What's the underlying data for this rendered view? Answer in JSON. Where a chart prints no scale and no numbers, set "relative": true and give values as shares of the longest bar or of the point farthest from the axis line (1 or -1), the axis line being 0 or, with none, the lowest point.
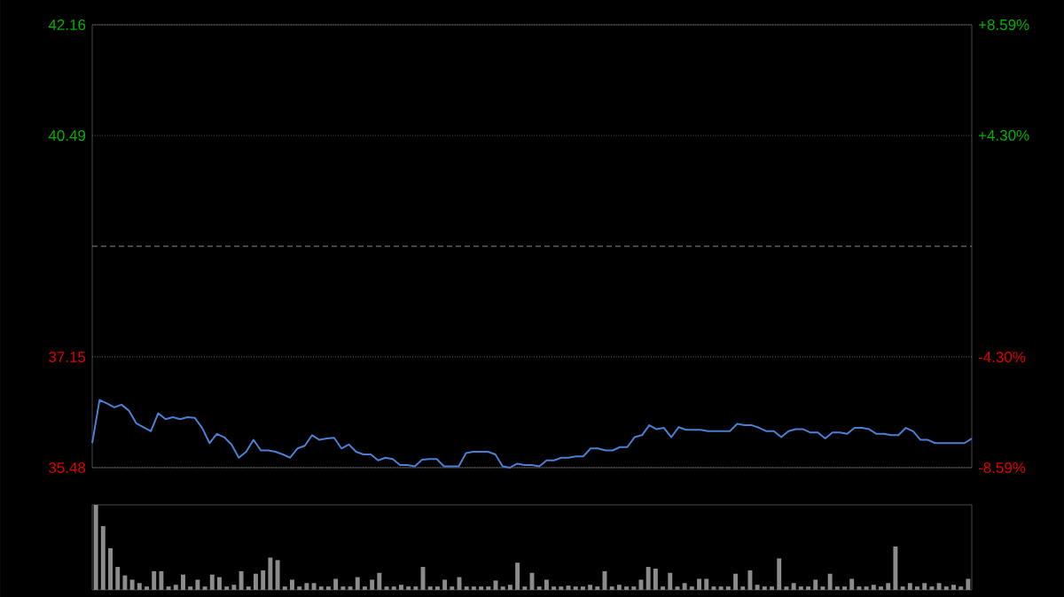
{
  "chart_data": [
    {
      "type": "line",
      "color": "#4a7fd4",
      "grid": "y",
      "tick_labels": "y",
      "categories": [
        null,
        null,
        null,
        null,
        null,
        null,
        null,
        null,
        null,
        null,
        null,
        null,
        null,
        null,
        null,
        null,
        null,
        null,
        null,
        null,
        null,
        null,
        null,
        null,
        null,
        null,
        null,
        null,
        null,
        null,
        null,
        null,
        null,
        null,
        null,
        null,
        null,
        null,
        null,
        null,
        null,
        null,
        null,
        null,
        null,
        null,
        null,
        null,
        null,
        null,
        null,
        null,
        null,
        null,
        null,
        null,
        null,
        null,
        null,
        null,
        null,
        null,
        null,
        null,
        null,
        null,
        null,
        null,
        null,
        null,
        null,
        null,
        null,
        null,
        null,
        null,
        null,
        null,
        null,
        null,
        null,
        null,
        null,
        null,
        null,
        null,
        null,
        null,
        null,
        null,
        null,
        null,
        null,
        null,
        null,
        null,
        null,
        null,
        null,
        null,
        null,
        null,
        null,
        null,
        null,
        null,
        null,
        null,
        null,
        null,
        null,
        null,
        null,
        null,
        null,
        null,
        null,
        null,
        null,
        null,
        null
      ],
      "values": [
        35.85,
        36.5,
        36.45,
        36.39,
        36.43,
        36.34,
        36.15,
        36.09,
        36.03,
        36.3,
        36.21,
        36.24,
        36.21,
        36.24,
        36.23,
        36.08,
        35.85,
        35.99,
        35.94,
        35.83,
        35.63,
        35.72,
        35.9,
        35.74,
        35.74,
        35.72,
        35.68,
        35.63,
        35.77,
        35.81,
        35.97,
        35.9,
        35.92,
        35.93,
        35.77,
        35.83,
        35.72,
        35.68,
        35.68,
        35.59,
        35.63,
        35.61,
        35.52,
        35.52,
        35.5,
        35.6,
        35.61,
        35.61,
        35.5,
        35.5,
        35.5,
        35.7,
        35.72,
        35.72,
        35.72,
        35.68,
        35.5,
        35.48,
        35.54,
        35.52,
        35.52,
        35.5,
        35.59,
        35.59,
        35.63,
        35.63,
        35.65,
        35.65,
        35.77,
        35.77,
        35.74,
        35.74,
        35.79,
        35.79,
        35.94,
        35.97,
        36.12,
        36.06,
        36.08,
        35.94,
        36.09,
        36.05,
        36.05,
        36.05,
        36.03,
        36.03,
        36.03,
        36.03,
        36.14,
        36.12,
        36.12,
        36.08,
        36.03,
        36.03,
        35.94,
        36.03,
        36.06,
        36.06,
        36.01,
        36.01,
        35.92,
        36.01,
        36.01,
        35.99,
        36.08,
        36.08,
        36.06,
        35.99,
        35.99,
        35.97,
        35.97,
        36.08,
        36.03,
        35.9,
        35.9,
        35.85,
        35.85,
        35.85,
        35.85,
        35.85,
        35.92
      ],
      "ylim": [
        35.48,
        42.16
      ],
      "yticks": [
        {
          "value": 35.48,
          "label": "35.48"
        },
        {
          "value": 37.15,
          "label": "37.15"
        },
        {
          "value": 40.49,
          "label": "40.49"
        },
        {
          "value": 42.16,
          "label": "42.16"
        }
      ],
      "y2lim": [
        -8.59,
        8.59
      ],
      "y2ticks": [
        {
          "value": -8.59,
          "label": "-8.59%"
        },
        {
          "value": -4.3,
          "label": "-4.30%"
        },
        {
          "value": 4.3,
          "label": "+4.30%"
        },
        {
          "value": 8.59,
          "label": "+8.59%"
        }
      ],
      "ref_lines": [
        {
          "axis": "y",
          "value": 38.82,
          "line_style": "dashed",
          "color": "#888888"
        }
      ]
    },
    {
      "type": "bar",
      "color": "#8c8c8c",
      "relative": true,
      "tick_labels": false,
      "categories": [
        null,
        null,
        null,
        null,
        null,
        null,
        null,
        null,
        null,
        null,
        null,
        null,
        null,
        null,
        null,
        null,
        null,
        null,
        null,
        null,
        null,
        null,
        null,
        null,
        null,
        null,
        null,
        null,
        null,
        null,
        null,
        null,
        null,
        null,
        null,
        null,
        null,
        null,
        null,
        null,
        null,
        null,
        null,
        null,
        null,
        null,
        null,
        null,
        null,
        null,
        null,
        null,
        null,
        null,
        null,
        null,
        null,
        null,
        null,
        null,
        null,
        null,
        null,
        null,
        null,
        null,
        null,
        null,
        null,
        null,
        null,
        null,
        null,
        null,
        null,
        null,
        null,
        null,
        null,
        null,
        null,
        null,
        null,
        null,
        null,
        null,
        null,
        null,
        null,
        null,
        null,
        null,
        null,
        null,
        null,
        null,
        null,
        null,
        null,
        null,
        null,
        null,
        null,
        null,
        null,
        null,
        null,
        null,
        null,
        null,
        null,
        null,
        null,
        null,
        null,
        null,
        null,
        null,
        null,
        null,
        null
      ],
      "values": [
        1.0,
        0.75,
        0.49,
        0.27,
        0.17,
        0.12,
        0.08,
        0.04,
        0.22,
        0.22,
        0.04,
        0.06,
        0.18,
        0.04,
        0.12,
        0.04,
        0.18,
        0.15,
        0.04,
        0.06,
        0.22,
        0.04,
        0.19,
        0.23,
        0.38,
        0.35,
        0.04,
        0.12,
        0.04,
        0.08,
        0.08,
        0.04,
        0.04,
        0.13,
        0.04,
        0.04,
        0.15,
        0.04,
        0.12,
        0.2,
        0.04,
        0.04,
        0.06,
        0.04,
        0.04,
        0.27,
        0.04,
        0.04,
        0.12,
        0.04,
        0.15,
        0.04,
        0.04,
        0.04,
        0.04,
        0.11,
        0.04,
        0.06,
        0.32,
        0.04,
        0.2,
        0.04,
        0.12,
        0.04,
        0.04,
        0.05,
        0.04,
        0.04,
        0.06,
        0.04,
        0.22,
        0.04,
        0.06,
        0.04,
        0.04,
        0.12,
        0.27,
        0.25,
        0.04,
        0.2,
        0.04,
        0.08,
        0.04,
        0.13,
        0.13,
        0.04,
        0.04,
        0.04,
        0.19,
        0.04,
        0.23,
        0.06,
        0.04,
        0.04,
        0.37,
        0.04,
        0.08,
        0.04,
        0.04,
        0.12,
        0.04,
        0.19,
        0.04,
        0.04,
        0.13,
        0.04,
        0.04,
        0.06,
        0.04,
        0.08,
        0.51,
        0.04,
        0.08,
        0.04,
        0.08,
        0.04,
        0.08,
        0.04,
        0.06,
        0.04,
        0.13
      ]
    }
  ]
}
